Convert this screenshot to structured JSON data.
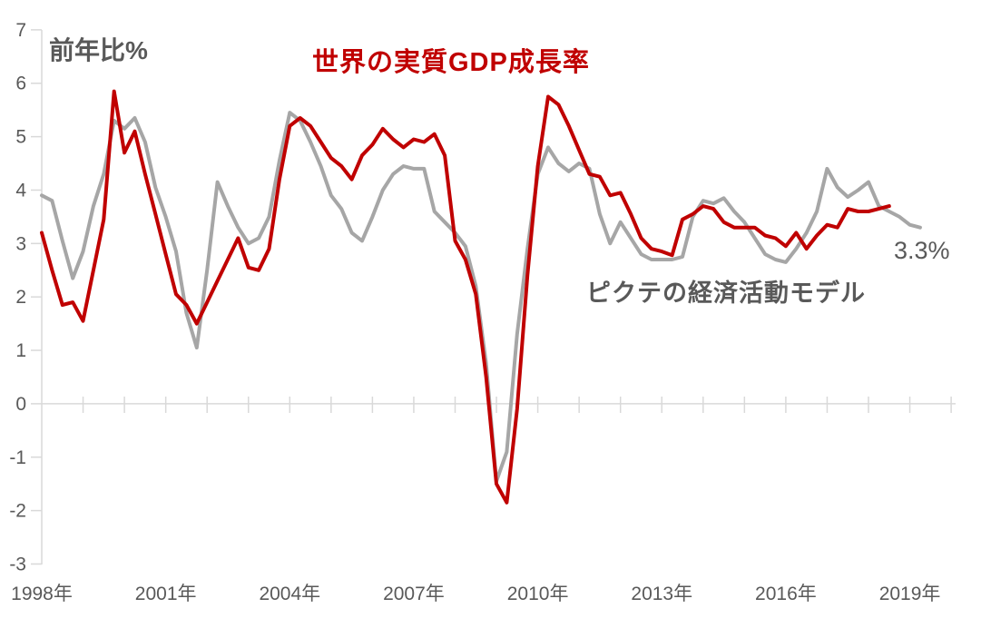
{
  "chart_data": {
    "type": "line",
    "title": "世界の実質GDP成長率",
    "ylabel": "前年比%",
    "xlabel": "",
    "ylim": [
      -3,
      7
    ],
    "x_range": [
      1998,
      2020
    ],
    "grid": false,
    "legend_position": "inline-labels-near-lines",
    "x_start": 1998.0,
    "x_step": 0.25,
    "y_ticks": [
      7,
      6,
      5,
      4,
      3,
      2,
      1,
      0,
      -1,
      -2,
      -3
    ],
    "x_tick_labels": [
      {
        "year": 1998,
        "label": "1998年"
      },
      {
        "year": 2001,
        "label": "2001年"
      },
      {
        "year": 2004,
        "label": "2004年"
      },
      {
        "year": 2007,
        "label": "2007年"
      },
      {
        "year": 2010,
        "label": "2010年"
      },
      {
        "year": 2013,
        "label": "2013年"
      },
      {
        "year": 2016,
        "label": "2016年"
      },
      {
        "year": 2019,
        "label": "2019年"
      }
    ],
    "minor_x_tick_years": [
      1999,
      2020
    ],
    "colors": {
      "world_gdp_line": "#c00000",
      "pictet_model_line": "#a6a6a6",
      "axis": "#d9d9d9",
      "tick_text": "#595959",
      "title_text": "#c00000",
      "label_text": "#595959"
    },
    "annotations": [
      {
        "text": "3.3%",
        "x": 2018.9,
        "y": 3.0
      }
    ],
    "series": [
      {
        "id": "pictet-model",
        "name": "ピクテの経済活動モデル",
        "color": "#a6a6a6",
        "stroke_width": 4,
        "values": [
          3.9,
          3.8,
          3.05,
          2.35,
          2.85,
          3.7,
          4.3,
          5.3,
          5.15,
          5.35,
          4.9,
          4.05,
          3.5,
          2.85,
          1.7,
          1.05,
          2.5,
          4.15,
          3.7,
          3.3,
          3.0,
          3.1,
          3.5,
          4.55,
          5.45,
          5.3,
          4.9,
          4.45,
          3.9,
          3.65,
          3.2,
          3.05,
          3.5,
          4.0,
          4.3,
          4.45,
          4.4,
          4.4,
          3.6,
          3.4,
          3.2,
          2.95,
          2.2,
          0.75,
          -1.45,
          -0.9,
          1.3,
          2.9,
          4.3,
          4.8,
          4.5,
          4.35,
          4.5,
          4.4,
          3.55,
          3.0,
          3.4,
          3.1,
          2.8,
          2.7,
          2.7,
          2.7,
          2.75,
          3.5,
          3.8,
          3.75,
          3.85,
          3.6,
          3.4,
          3.1,
          2.8,
          2.7,
          2.65,
          2.9,
          3.2,
          3.6,
          4.4,
          4.05,
          3.87,
          4.0,
          4.15,
          3.7,
          3.6,
          3.5,
          3.35,
          3.3
        ]
      },
      {
        "id": "world-gdp",
        "name": "世界の実質GDP成長率",
        "color": "#c00000",
        "stroke_width": 4,
        "values": [
          3.2,
          2.5,
          1.85,
          1.9,
          1.55,
          2.5,
          3.45,
          5.85,
          4.7,
          5.1,
          4.3,
          3.55,
          2.8,
          2.05,
          1.85,
          1.5,
          1.9,
          2.3,
          2.7,
          3.1,
          2.55,
          2.5,
          2.9,
          4.2,
          5.2,
          5.35,
          5.2,
          4.9,
          4.6,
          4.45,
          4.2,
          4.65,
          4.85,
          5.15,
          4.95,
          4.8,
          4.95,
          4.9,
          5.05,
          4.65,
          3.05,
          2.7,
          2.05,
          0.5,
          -1.5,
          -1.85,
          -0.1,
          2.4,
          4.45,
          5.75,
          5.6,
          5.2,
          4.75,
          4.3,
          4.25,
          3.9,
          3.95,
          3.55,
          3.1,
          2.9,
          2.85,
          2.78,
          3.45,
          3.55,
          3.7,
          3.65,
          3.4,
          3.3,
          3.3,
          3.3,
          3.15,
          3.1,
          2.95,
          3.2,
          2.9,
          3.15,
          3.35,
          3.3,
          3.65,
          3.6,
          3.6,
          3.65,
          3.7
        ]
      }
    ]
  }
}
